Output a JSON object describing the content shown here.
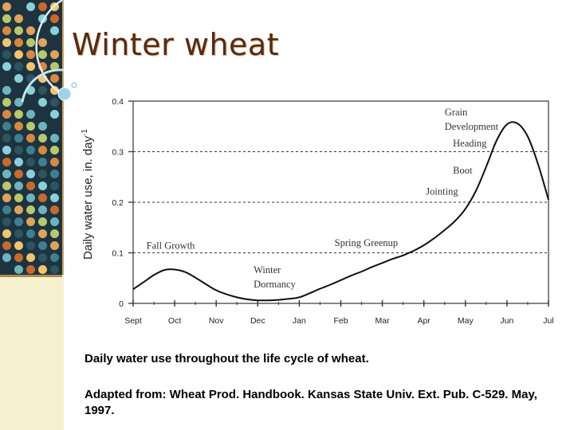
{
  "slide": {
    "title": "Winter wheat",
    "caption": "Daily water use throughout the life cycle of wheat.",
    "source": "Adapted from: Wheat Prod. Handbook. Kansas State Univ. Ext. Pub. C-529. May, 1997."
  },
  "theme": {
    "title_color": "#5a2a0e",
    "sidebar_bg": "#f6f2cf",
    "mosaic_colors": [
      "#e0a458",
      "#c96a2b",
      "#3f7f8f",
      "#6fb3bf",
      "#2c5560",
      "#b8c96a",
      "#8ad0d8",
      "#d9883e",
      "#1d3340",
      "#f2c46d"
    ]
  },
  "chart_data": {
    "type": "line",
    "title": "",
    "xlabel": "",
    "ylabel": "Daily water use, in. day",
    "ylabel_superscript": "-1",
    "categories": [
      "Sept",
      "Oct",
      "Nov",
      "Dec",
      "Jan",
      "Feb",
      "Mar",
      "Apr",
      "May",
      "Jun",
      "Jul"
    ],
    "ylim": [
      0,
      0.4
    ],
    "yticks": [
      "0",
      "0.1",
      "0.2",
      "0.3",
      "0.4"
    ],
    "gridlines": [
      0.1,
      0.2,
      0.3
    ],
    "series": [
      {
        "name": "Daily water use",
        "x": [
          0,
          0.25,
          0.5,
          0.75,
          1.0,
          1.25,
          1.5,
          1.75,
          2.0,
          2.25,
          2.5,
          2.75,
          3.0,
          3.25,
          3.5,
          3.75,
          4.0,
          4.25,
          4.5,
          4.75,
          5.0,
          5.25,
          5.5,
          5.75,
          6.0,
          6.25,
          6.5,
          6.75,
          7.0,
          7.25,
          7.5,
          7.75,
          8.0,
          8.25,
          8.5,
          8.75,
          9.0,
          9.25,
          9.5,
          9.75,
          10.0
        ],
        "y": [
          0.028,
          0.042,
          0.056,
          0.066,
          0.067,
          0.062,
          0.051,
          0.038,
          0.026,
          0.018,
          0.012,
          0.008,
          0.006,
          0.006,
          0.007,
          0.009,
          0.012,
          0.02,
          0.029,
          0.037,
          0.046,
          0.055,
          0.063,
          0.072,
          0.08,
          0.088,
          0.095,
          0.104,
          0.115,
          0.129,
          0.145,
          0.163,
          0.187,
          0.222,
          0.27,
          0.322,
          0.354,
          0.356,
          0.33,
          0.275,
          0.205
        ]
      }
    ],
    "annotations": [
      {
        "id": "grain",
        "lines": [
          "Grain",
          "Development"
        ],
        "x": 7.5,
        "y": 0.372
      },
      {
        "id": "heading",
        "lines": [
          "Heading"
        ],
        "x": 7.7,
        "y": 0.31
      },
      {
        "id": "boot",
        "lines": [
          "Boot"
        ],
        "x": 7.7,
        "y": 0.257
      },
      {
        "id": "jointing",
        "lines": [
          "Jointing"
        ],
        "x": 7.05,
        "y": 0.215
      },
      {
        "id": "spring",
        "lines": [
          "Spring Greenup"
        ],
        "x": 4.85,
        "y": 0.113
      },
      {
        "id": "fall",
        "lines": [
          "Fall Growth"
        ],
        "x": 0.32,
        "y": 0.108
      },
      {
        "id": "winter",
        "lines": [
          "Winter",
          "Dormancy"
        ],
        "x": 2.9,
        "y": 0.06
      }
    ]
  }
}
